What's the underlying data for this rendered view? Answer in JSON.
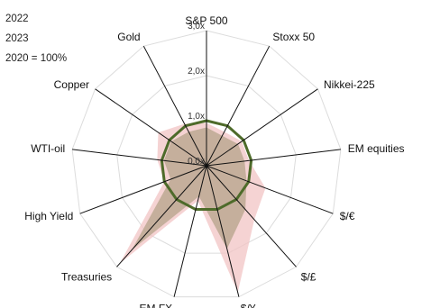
{
  "chart_data": {
    "type": "radar",
    "legend": {
      "entries": [
        "2022",
        "2023",
        "2020 = 100%"
      ],
      "placement": "top-left"
    },
    "axes": [
      "S&P 500",
      "Stoxx 50",
      "Nikkei-225",
      "EM equities",
      "$/€",
      "$/£",
      "$/¥",
      "EM FX",
      "Treasuries",
      "High Yield",
      "WTI-oil",
      "Copper",
      "Gold"
    ],
    "rlim": [
      0,
      3
    ],
    "ticks": [
      "0,0x",
      "1,0x",
      "2,0x",
      "3,0x"
    ],
    "tick_values": [
      0,
      1,
      2,
      3
    ],
    "series": [
      {
        "values": [
          0.95,
          0.85,
          0.95,
          0.95,
          1.4,
          1.6,
          2.9,
          0.8,
          2.9,
          1.0,
          1.1,
          1.3,
          1.05
        ],
        "color": "#ea9b9b"
      },
      {
        "values": [
          0.85,
          0.75,
          0.85,
          0.85,
          0.95,
          1.3,
          1.9,
          0.7,
          2.5,
          0.85,
          0.95,
          0.95,
          0.85
        ],
        "color": "#9e9a70"
      },
      {
        "values": [
          1,
          1,
          1,
          1,
          1,
          1,
          1,
          1,
          1,
          1,
          1,
          1,
          1
        ],
        "color": "#4e6b2a"
      }
    ],
    "grid": true
  }
}
